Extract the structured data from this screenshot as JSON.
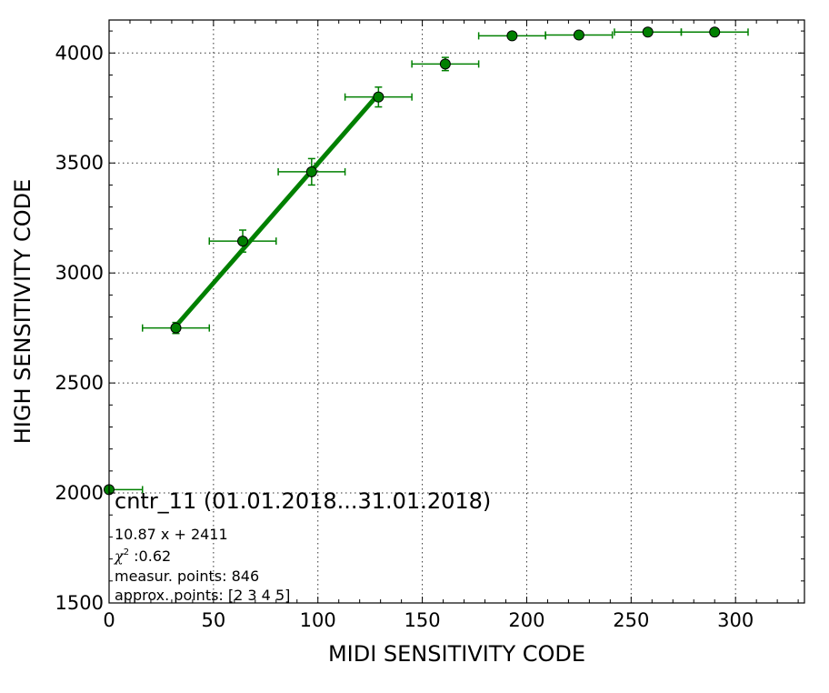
{
  "chart_data": {
    "type": "scatter",
    "xlabel": "MIDI SENSITIVITY CODE",
    "ylabel": "HIGH SENSITIVITY CODE",
    "xlim": [
      0,
      333
    ],
    "ylim": [
      1500,
      4150
    ],
    "xticks": [
      0,
      50,
      100,
      150,
      200,
      250,
      300
    ],
    "yticks": [
      1500,
      2000,
      2500,
      3000,
      3500,
      4000
    ],
    "grid": true,
    "color": "#008000",
    "points": [
      {
        "x": 0,
        "y": 2015,
        "xerr": [
          0,
          16
        ],
        "yerr": 0
      },
      {
        "x": 32,
        "y": 2750,
        "xerr": [
          16,
          16
        ],
        "yerr": 25
      },
      {
        "x": 64,
        "y": 3145,
        "xerr": [
          16,
          16
        ],
        "yerr": 50
      },
      {
        "x": 97,
        "y": 3460,
        "xerr": [
          16,
          16
        ],
        "yerr": 60
      },
      {
        "x": 129,
        "y": 3800,
        "xerr": [
          16,
          16
        ],
        "yerr": 45
      },
      {
        "x": 161,
        "y": 3950,
        "xerr": [
          16,
          16
        ],
        "yerr": 30
      },
      {
        "x": 193,
        "y": 4078,
        "xerr": [
          16,
          16
        ],
        "yerr": 8
      },
      {
        "x": 225,
        "y": 4082,
        "xerr": [
          16,
          16
        ],
        "yerr": 5
      },
      {
        "x": 258,
        "y": 4095,
        "xerr": [
          16,
          16
        ],
        "yerr": 5
      },
      {
        "x": 290,
        "y": 4095,
        "xerr": [
          16,
          16
        ],
        "yerr": 5
      }
    ],
    "fit_line": {
      "x_start": 32,
      "x_end": 129,
      "slope": 10.87,
      "intercept": 2411
    },
    "annotation": {
      "title": "cntr_11 (01.01.2018...31.01.2018)",
      "equation": "10.87 x + 2411",
      "chi2_symbol": "χ",
      "chi2_exp": "2",
      "chi2_value": " :0.62",
      "measur_points": "measur. points: 846",
      "approx_points": "approx. points: [2 3 4 5]"
    }
  }
}
